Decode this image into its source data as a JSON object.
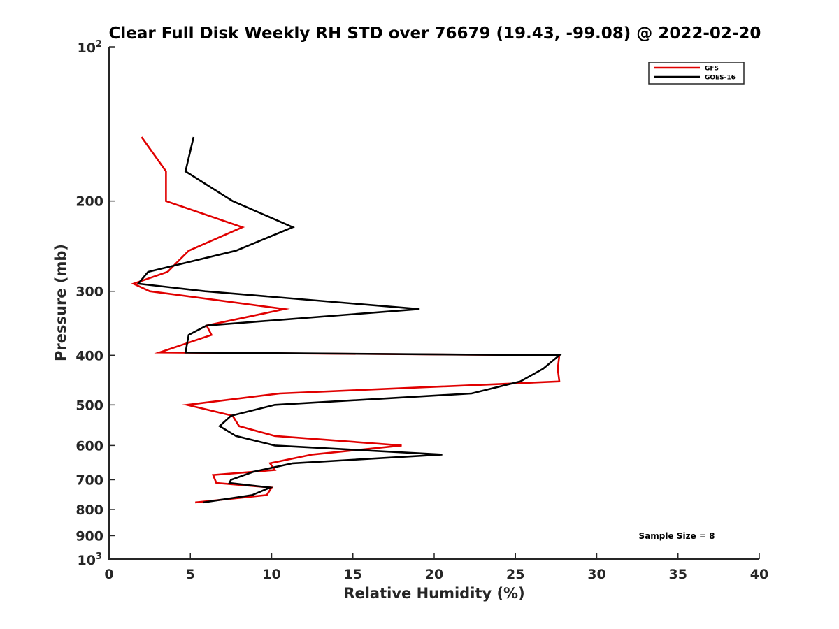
{
  "chart_data": {
    "type": "line",
    "title": "Clear Full Disk Weekly RH STD over 76679 (19.43, -99.08) @ 2022-02-20",
    "xlabel": "Relative Humidity (%)",
    "ylabel": "Pressure (mb)",
    "xlim": [
      0,
      40
    ],
    "ylim": [
      100,
      1000
    ],
    "y_scale": "log",
    "y_reversed": true,
    "x_ticks": [
      "0",
      "5",
      "10",
      "15",
      "20",
      "25",
      "30",
      "35",
      "40"
    ],
    "y_ticks": [
      {
        "value": 100,
        "base": "10",
        "exp": "2"
      },
      {
        "value": 200,
        "label": "200"
      },
      {
        "value": 300,
        "label": "300"
      },
      {
        "value": 400,
        "label": "400"
      },
      {
        "value": 500,
        "label": "500"
      },
      {
        "value": 600,
        "label": "600"
      },
      {
        "value": 700,
        "label": "700"
      },
      {
        "value": 800,
        "label": "800"
      },
      {
        "value": 900,
        "label": "900"
      },
      {
        "value": 1000,
        "base": "10",
        "exp": "3"
      }
    ],
    "legend_position": "top-right",
    "annotation": "Sample Size = 8",
    "series": [
      {
        "name": "GFS",
        "color": "#e00000",
        "points": [
          [
            2.0,
            150
          ],
          [
            3.5,
            175
          ],
          [
            3.5,
            200
          ],
          [
            8.2,
            225
          ],
          [
            4.9,
            250
          ],
          [
            3.6,
            275
          ],
          [
            1.5,
            290
          ],
          [
            2.5,
            300
          ],
          [
            10.8,
            325
          ],
          [
            6.0,
            350
          ],
          [
            6.3,
            365
          ],
          [
            3.1,
            395
          ],
          [
            27.7,
            400
          ],
          [
            27.6,
            425
          ],
          [
            27.7,
            450
          ],
          [
            10.5,
            475
          ],
          [
            4.8,
            500
          ],
          [
            7.6,
            525
          ],
          [
            8.0,
            550
          ],
          [
            10.2,
            575
          ],
          [
            18.0,
            600
          ],
          [
            12.5,
            625
          ],
          [
            9.9,
            650
          ],
          [
            10.2,
            670
          ],
          [
            6.4,
            685
          ],
          [
            6.6,
            710
          ],
          [
            10.0,
            725
          ],
          [
            9.7,
            750
          ],
          [
            5.3,
            775
          ]
        ]
      },
      {
        "name": "GOES-16",
        "color": "#000000",
        "points": [
          [
            5.2,
            150
          ],
          [
            4.7,
            175
          ],
          [
            7.6,
            200
          ],
          [
            11.3,
            225
          ],
          [
            7.8,
            250
          ],
          [
            2.4,
            275
          ],
          [
            1.8,
            290
          ],
          [
            5.9,
            300
          ],
          [
            19.1,
            325
          ],
          [
            6.0,
            350
          ],
          [
            4.9,
            365
          ],
          [
            4.7,
            395
          ],
          [
            27.7,
            400
          ],
          [
            26.7,
            425
          ],
          [
            25.3,
            450
          ],
          [
            22.3,
            475
          ],
          [
            10.2,
            500
          ],
          [
            7.5,
            525
          ],
          [
            6.8,
            550
          ],
          [
            7.8,
            575
          ],
          [
            10.2,
            600
          ],
          [
            20.5,
            625
          ],
          [
            11.3,
            650
          ],
          [
            8.9,
            675
          ],
          [
            7.5,
            700
          ],
          [
            7.4,
            710
          ],
          [
            9.9,
            725
          ],
          [
            8.8,
            750
          ],
          [
            5.8,
            775
          ]
        ]
      }
    ]
  }
}
